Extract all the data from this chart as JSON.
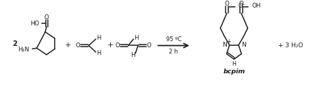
{
  "bg_color": "#ffffff",
  "line_color": "#1a1a1a",
  "figsize": [
    4.74,
    1.27
  ],
  "dpi": 100,
  "condition_top": "95 ºC",
  "condition_bot": "2 h",
  "label_bcpim": "bcpim",
  "label_plus3": "+ 3 H₂O",
  "label_2": "2",
  "lw": 1.1
}
